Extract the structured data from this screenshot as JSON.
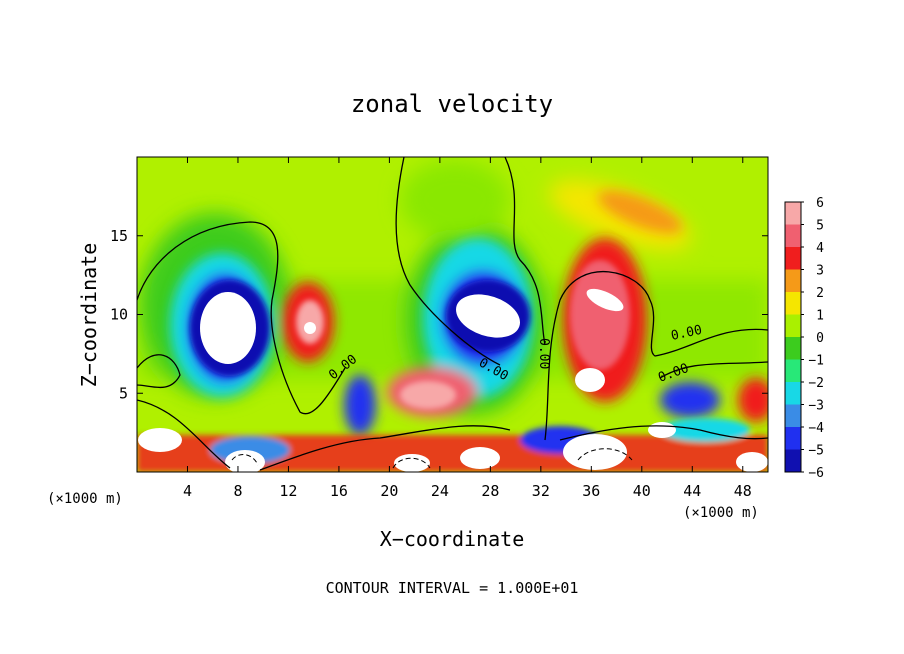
{
  "chart_data": {
    "type": "heatmap",
    "title": "zonal velocity",
    "xlabel": "X−coordinate",
    "ylabel": "Z−coordinate",
    "x_unit_left": "(×1000 m)",
    "x_unit_right": "(×1000 m)",
    "xlim": [
      0,
      50
    ],
    "ylim": [
      0,
      20
    ],
    "x_ticks": [
      4,
      8,
      12,
      16,
      20,
      24,
      28,
      32,
      36,
      40,
      44,
      48
    ],
    "y_ticks": [
      5,
      10,
      15
    ],
    "colorbar": {
      "levels": [
        6,
        5,
        4,
        3,
        2,
        1,
        0,
        -1,
        -2,
        -3,
        -4,
        -5,
        -6
      ],
      "labels": [
        "6",
        "5",
        "4",
        "3",
        "2",
        "1",
        "0",
        "−1",
        "−2",
        "−3",
        "−4",
        "−5",
        "−6"
      ],
      "colors": [
        "#f7a8a8",
        "#f06070",
        "#f01e1e",
        "#f59a18",
        "#f5e600",
        "#aaf000",
        "#3ccc1e",
        "#28e878",
        "#18d8e6",
        "#3a8ce6",
        "#2030f0",
        "#1010b0",
        "#7020a8"
      ],
      "over_color": "#ffffff"
    },
    "contour_labels": [
      "0.00",
      "0.00",
      "0.00",
      "0.00",
      "0.00"
    ],
    "contour_interval": "CONTOUR INTERVAL = 1.000E+01",
    "features": [
      {
        "x": 8.5,
        "z": 10.0,
        "value": -7
      },
      {
        "x": 27.5,
        "z": 10.3,
        "value": -7
      },
      {
        "x": 13.5,
        "z": 9.5,
        "value": 6
      },
      {
        "x": 36.5,
        "z": 11.0,
        "value": 6
      },
      {
        "x": 36.5,
        "z": 6.0,
        "value": 6
      },
      {
        "x": 39.5,
        "z": 17.5,
        "value": 3
      }
    ]
  }
}
